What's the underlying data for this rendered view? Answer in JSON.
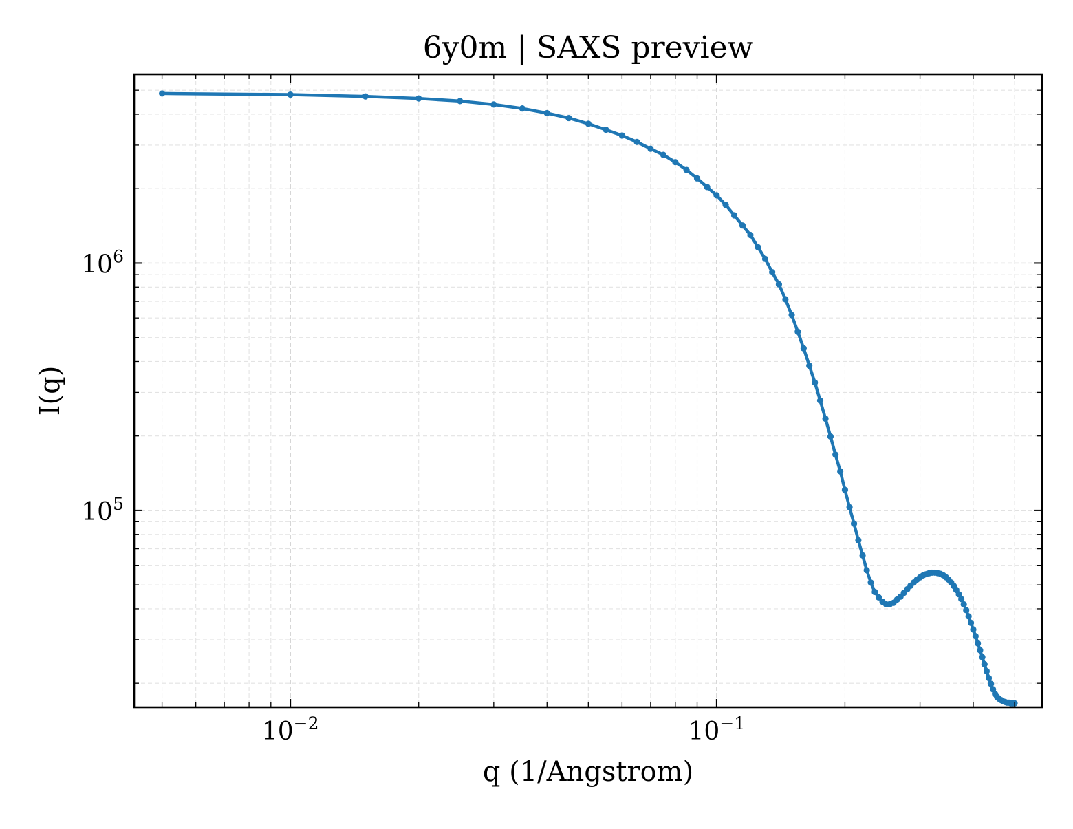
{
  "chart_data": {
    "type": "line",
    "title": "6y0m | SAXS preview",
    "xlabel": "q (1/Angstrom)",
    "ylabel": "I(q)",
    "xscale": "log",
    "yscale": "log",
    "xlim": [
      0.0043,
      0.58
    ],
    "ylim": [
      16000,
      5800000
    ],
    "grid": true,
    "legend": "none",
    "xticks": [
      {
        "value": 0.01,
        "base": "10",
        "exp": "−2"
      },
      {
        "value": 0.1,
        "base": "10",
        "exp": "−1"
      }
    ],
    "yticks": [
      {
        "value": 100000,
        "base": "10",
        "exp": "5"
      },
      {
        "value": 1000000,
        "base": "10",
        "exp": "6"
      }
    ],
    "series": [
      {
        "color": "#1f77b4",
        "marker": "circle",
        "x": [
          0.005,
          0.01,
          0.015,
          0.02,
          0.025,
          0.03,
          0.035,
          0.04,
          0.045,
          0.05,
          0.055,
          0.06,
          0.065,
          0.07,
          0.075,
          0.08,
          0.085,
          0.09,
          0.095,
          0.1,
          0.105,
          0.11,
          0.115,
          0.12,
          0.125,
          0.13,
          0.135,
          0.14,
          0.145,
          0.15,
          0.155,
          0.16,
          0.165,
          0.17,
          0.175,
          0.18,
          0.185,
          0.19,
          0.195,
          0.2,
          0.205,
          0.21,
          0.215,
          0.22,
          0.225,
          0.23,
          0.235,
          0.24,
          0.245,
          0.25,
          0.255,
          0.26,
          0.265,
          0.27,
          0.275,
          0.28,
          0.285,
          0.29,
          0.295,
          0.3,
          0.305,
          0.31,
          0.315,
          0.32,
          0.325,
          0.33,
          0.335,
          0.34,
          0.345,
          0.35,
          0.355,
          0.36,
          0.365,
          0.37,
          0.375,
          0.38,
          0.385,
          0.39,
          0.395,
          0.4,
          0.405,
          0.41,
          0.415,
          0.42,
          0.425,
          0.43,
          0.435,
          0.44,
          0.445,
          0.45,
          0.455,
          0.46,
          0.465,
          0.47,
          0.475,
          0.48,
          0.485,
          0.49,
          0.495,
          0.5
        ],
        "y": [
          4850000,
          4800000,
          4720000,
          4630000,
          4520000,
          4380000,
          4220000,
          4040000,
          3860000,
          3660000,
          3460000,
          3280000,
          3090000,
          2900000,
          2740000,
          2560000,
          2380000,
          2200000,
          2030000,
          1880000,
          1720000,
          1560000,
          1420000,
          1300000,
          1160000,
          1040000,
          919000,
          821000,
          714000,
          617000,
          528000,
          452000,
          385000,
          329000,
          278000,
          235000,
          199000,
          168000,
          144000,
          121000,
          103000,
          88400,
          75700,
          65800,
          57300,
          51100,
          46800,
          44500,
          42700,
          41700,
          41800,
          42300,
          43600,
          44800,
          46400,
          48000,
          49600,
          51100,
          52500,
          53600,
          54600,
          55200,
          55700,
          56000,
          56000,
          55800,
          55400,
          54700,
          53700,
          52500,
          51100,
          49500,
          47700,
          45800,
          43800,
          41700,
          39500,
          37300,
          35100,
          33000,
          31000,
          29000,
          27200,
          25500,
          23900,
          22400,
          21000,
          19900,
          18900,
          18100,
          17600,
          17300,
          17100,
          16900,
          16800,
          16700,
          16700,
          16600,
          16600,
          16600
        ]
      }
    ]
  }
}
